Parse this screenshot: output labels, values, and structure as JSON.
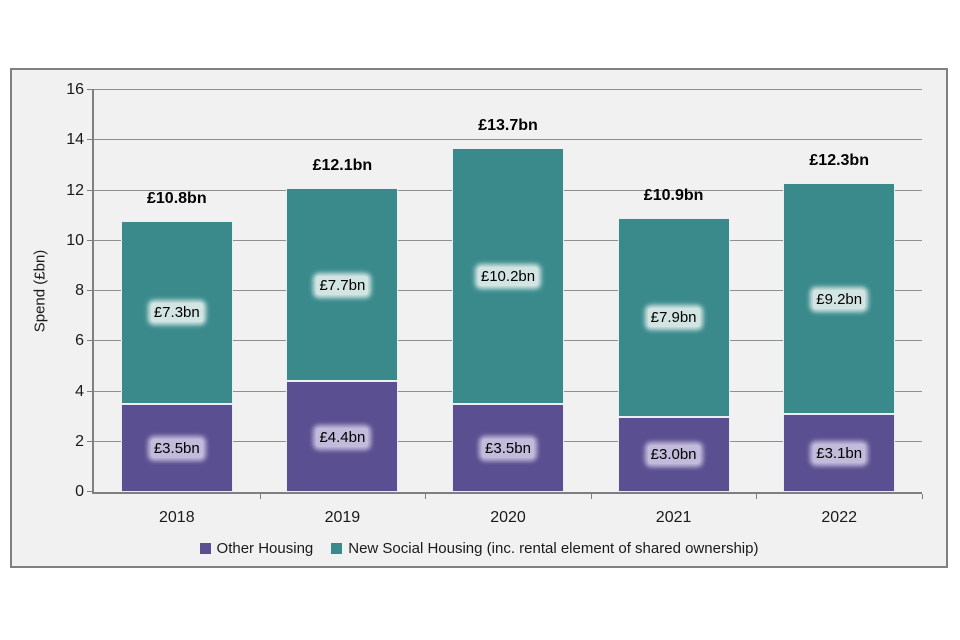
{
  "chart_data": {
    "type": "bar",
    "stacked": true,
    "title": "",
    "categories": [
      "2018",
      "2019",
      "2020",
      "2021",
      "2022"
    ],
    "series": [
      {
        "name": "Other Housing",
        "color": "#5a4f90",
        "label_glow": "#c2bbdb",
        "values": [
          3.5,
          4.4,
          3.5,
          3.0,
          3.1
        ],
        "labels": [
          "£3.5bn",
          "£4.4bn",
          "£3.5bn",
          "£3.0bn",
          "£3.1bn"
        ]
      },
      {
        "name": "New Social Housing (inc. rental element of shared ownership)",
        "color": "#3a8a8c",
        "label_glow": "#d2e5e3",
        "values": [
          7.3,
          7.7,
          10.2,
          7.9,
          9.2
        ],
        "labels": [
          "£7.3bn",
          "£7.7bn",
          "£10.2bn",
          "£7.9bn",
          "£9.2bn"
        ]
      }
    ],
    "totals": [
      10.8,
      12.1,
      13.7,
      10.9,
      12.3
    ],
    "total_labels": [
      "£10.8bn",
      "£12.1bn",
      "£13.7bn",
      "£10.9bn",
      "£12.3bn"
    ],
    "xlabel": "",
    "ylabel": "Spend (£bn)",
    "ylim": [
      0,
      16
    ],
    "yticks": [
      0,
      2,
      4,
      6,
      8,
      10,
      12,
      14,
      16
    ],
    "grid": true,
    "legend_position": "bottom",
    "colors": {
      "plot_background": "#f1f1f1",
      "frame_border": "#808080",
      "gridline": "#8f8f8f",
      "axis": "#7f7f7f",
      "text": "#1a1a1a"
    }
  }
}
